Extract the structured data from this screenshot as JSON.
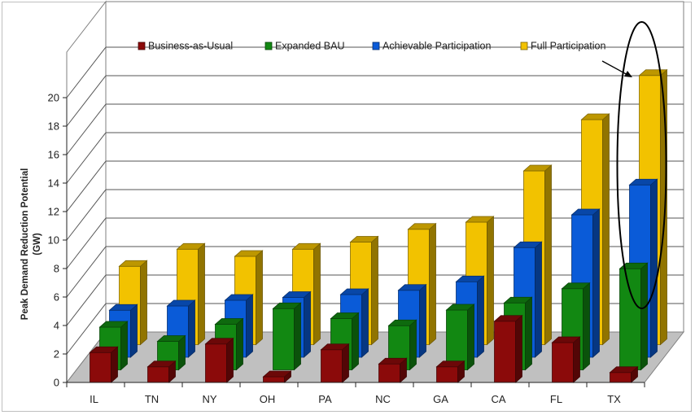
{
  "chart_data": {
    "type": "bar",
    "title": "",
    "xlabel": "",
    "ylabel": [
      "Peak Demand Reduction Potential",
      "(GW)"
    ],
    "ylim": [
      0,
      20
    ],
    "yticks": [
      "0",
      "2",
      "4",
      "6",
      "8",
      "10",
      "12",
      "14",
      "16",
      "18",
      "20"
    ],
    "grid": true,
    "legend_position": "top",
    "categories": [
      "IL",
      "TN",
      "NY",
      "OH",
      "PA",
      "NC",
      "GA",
      "CA",
      "FL",
      "TX"
    ],
    "series": [
      {
        "name": "Business-as-Usual",
        "color": "#8b0a0a",
        "values": [
          2.1,
          1.1,
          2.7,
          0.4,
          2.3,
          1.3,
          1.1,
          4.3,
          2.8,
          0.7
        ]
      },
      {
        "name": "Expanded BAU",
        "color": "#128812",
        "values": [
          3.0,
          2.0,
          3.2,
          4.3,
          3.6,
          3.1,
          4.2,
          4.7,
          5.7,
          7.1
        ]
      },
      {
        "name": "Achievable Participation",
        "color": "#0a5bd8",
        "values": [
          3.3,
          3.6,
          4.0,
          4.2,
          4.4,
          4.7,
          5.3,
          7.7,
          10.0,
          12.1
        ]
      },
      {
        "name": "Full Participation",
        "color": "#f2c200",
        "values": [
          5.5,
          6.7,
          6.2,
          6.7,
          7.2,
          8.1,
          8.6,
          12.2,
          15.8,
          18.9
        ]
      }
    ]
  },
  "annotation": {
    "type": "ellipse-with-arrow",
    "target_category": "TX",
    "color": "#000000"
  }
}
